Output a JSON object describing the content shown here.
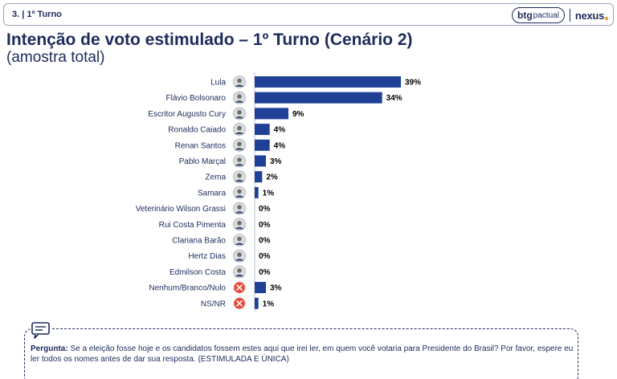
{
  "header": {
    "section_label": "3. | 1º Turno",
    "brand_btg_a": "btg",
    "brand_btg_b": "pactual",
    "brand_nexus": "nexus"
  },
  "title": "Intenção de voto estimulado – 1º Turno (Cenário 2)",
  "subtitle": "(amostra total)",
  "chart_data": {
    "type": "bar",
    "orientation": "horizontal",
    "title": "Intenção de voto estimulado – 1º Turno (Cenário 2)",
    "subtitle": "(amostra total)",
    "categories": [
      "Lula",
      "Flávio Bolsonaro",
      "Escritor Augusto Cury",
      "Ronaldo Caiado",
      "Renan Santos",
      "Pablo Marçal",
      "Zema",
      "Samara",
      "Veterinário Wilson Grassi",
      "Rui Costa Pimenta",
      "Clariana Barão",
      "Hertz Dias",
      "Edmilson Costa",
      "Nenhum/Branco/Nulo",
      "NS/NR"
    ],
    "values": [
      39,
      34,
      9,
      4,
      4,
      3,
      2,
      1,
      0,
      0,
      0,
      0,
      0,
      3,
      1
    ],
    "value_labels": [
      "39%",
      "34%",
      "9%",
      "4%",
      "4%",
      "3%",
      "2%",
      "1%",
      "0%",
      "0%",
      "0%",
      "0%",
      "0%",
      "3%",
      "1%"
    ],
    "icons": [
      "avatar",
      "avatar",
      "avatar",
      "avatar",
      "avatar",
      "avatar",
      "avatar",
      "avatar",
      "avatar",
      "avatar",
      "avatar",
      "avatar",
      "avatar",
      "x-icon",
      "x-icon"
    ],
    "xlim": [
      0,
      42
    ],
    "grid": false,
    "colors": {
      "bar": "#1f4096",
      "axis": "#b8bfcc",
      "x_icon": "#e74c3c"
    }
  },
  "question": {
    "label": "Pergunta:",
    "text": " Se a eleição fosse hoje e os candidatos fossem estes aqui que irei ler, em quem você votaria para Presidente do Brasil? Por favor, espere eu ler todos os nomes antes de dar sua resposta. (ESTIMULADA E ÚNICA)"
  }
}
